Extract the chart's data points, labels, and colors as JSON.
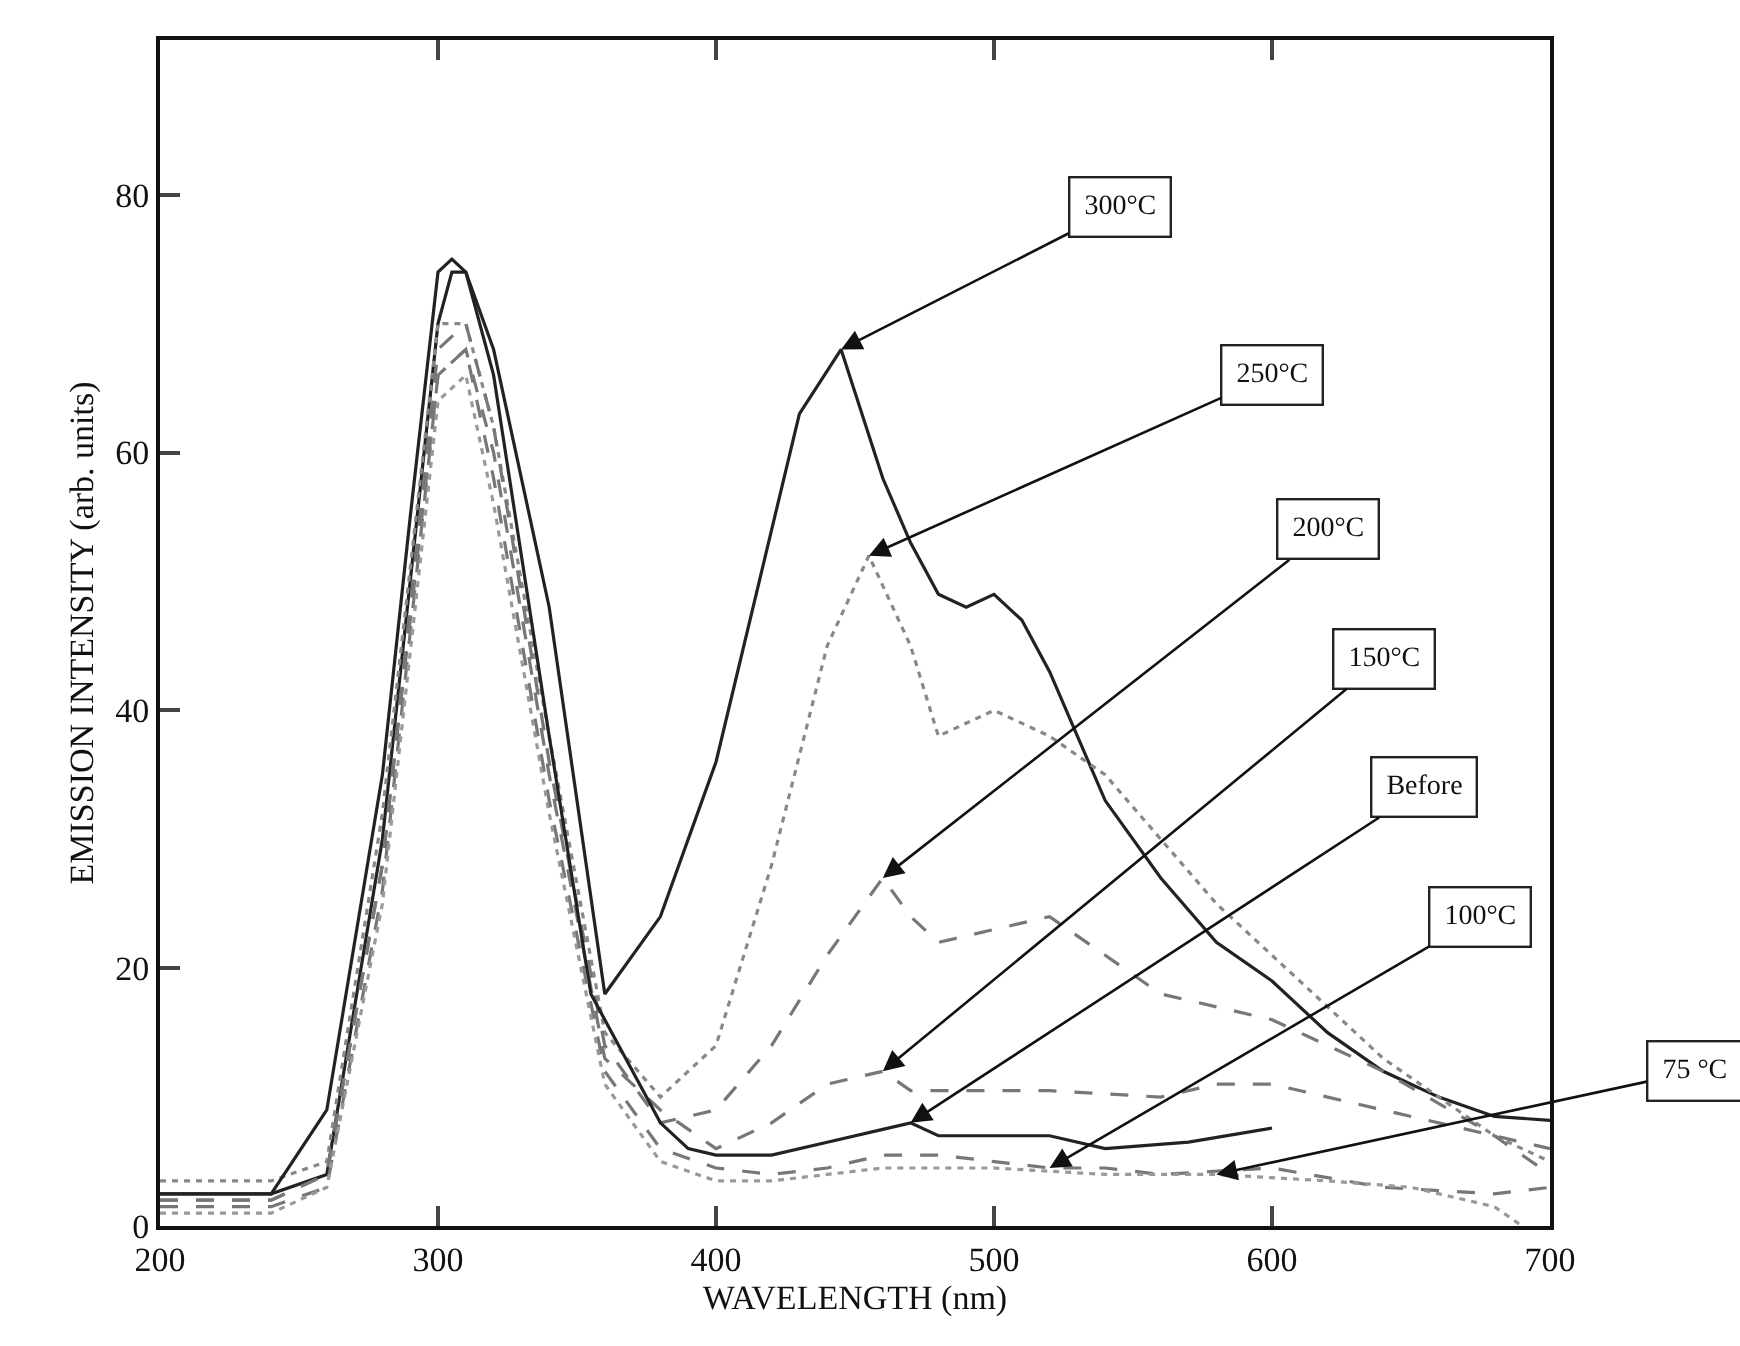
{
  "chart_data": {
    "type": "line",
    "xlabel": "WAVELENGTH (nm)",
    "ylabel": "EMISSION INTENSITY (arb. units)",
    "xlim": [
      200,
      700
    ],
    "xticks": [
      200,
      300,
      400,
      500,
      600,
      700
    ],
    "ylim": [
      0,
      92
    ],
    "yticks": [
      0,
      20,
      40,
      60,
      80
    ],
    "series": [
      {
        "color": "#222222",
        "line_style": "solid",
        "x": [
          200,
          240,
          260,
          280,
          300,
          305,
          310,
          320,
          340,
          360,
          380,
          400,
          420,
          430,
          445,
          460,
          470,
          480,
          490,
          500,
          510,
          520,
          540,
          560,
          580,
          600,
          620,
          640,
          660,
          680,
          700
        ],
        "values": [
          2.5,
          2.5,
          4,
          30,
          70,
          74,
          74,
          68,
          48,
          18,
          24,
          36,
          54,
          63,
          68,
          58,
          53,
          49,
          48,
          49,
          47,
          43,
          33,
          27,
          22,
          19,
          15,
          12,
          10,
          8.5,
          8.2
        ]
      },
      {
        "color": "#888888",
        "line_style": "dotted",
        "x": [
          200,
          240,
          260,
          280,
          300,
          310,
          320,
          340,
          360,
          380,
          400,
          420,
          440,
          455,
          470,
          480,
          500,
          520,
          540,
          560,
          580,
          600,
          640,
          680,
          700
        ],
        "values": [
          3.5,
          3.5,
          5,
          32,
          70,
          70,
          62,
          38,
          15,
          10,
          14,
          28,
          45,
          52,
          45,
          38,
          40,
          38,
          35,
          30,
          25,
          21,
          13,
          7,
          5
        ]
      },
      {
        "color": "#777777",
        "line_style": "dashed",
        "x": [
          200,
          240,
          260,
          280,
          300,
          310,
          320,
          340,
          360,
          380,
          400,
          420,
          440,
          460,
          470,
          480,
          500,
          520,
          540,
          560,
          580,
          600,
          640,
          680,
          700
        ],
        "values": [
          2,
          2,
          4,
          28,
          68,
          70,
          62,
          36,
          14,
          8,
          9,
          14,
          21,
          27,
          24,
          22,
          23,
          24,
          21,
          18,
          17,
          16,
          12,
          7,
          4
        ]
      },
      {
        "color": "#777777",
        "line_style": "dashed",
        "x": [
          200,
          240,
          260,
          280,
          300,
          310,
          320,
          340,
          360,
          380,
          400,
          420,
          440,
          460,
          470,
          480,
          500,
          520,
          560,
          580,
          600,
          640,
          680,
          700
        ],
        "values": [
          2,
          2,
          4,
          28,
          66,
          68,
          60,
          35,
          13,
          9,
          6,
          8,
          11,
          12,
          10.5,
          10.5,
          10.5,
          10.5,
          10,
          11,
          11,
          9,
          7,
          6
        ]
      },
      {
        "color": "#222222",
        "line_style": "solid",
        "x": [
          200,
          240,
          260,
          280,
          290,
          300,
          305,
          310,
          320,
          340,
          355,
          370,
          380,
          390,
          400,
          420,
          440,
          460,
          470,
          480,
          500,
          520,
          540,
          570,
          600
        ],
        "values": [
          2.5,
          2.5,
          9,
          35,
          55,
          74,
          75,
          74,
          66,
          38,
          18,
          12,
          8,
          6,
          5.5,
          5.5,
          6.5,
          7.5,
          8,
          7,
          7,
          7,
          6,
          6.5,
          7.6
        ]
      },
      {
        "color": "#777777",
        "line_style": "dashed",
        "x": [
          200,
          240,
          260,
          280,
          300,
          310,
          320,
          340,
          360,
          380,
          400,
          420,
          440,
          460,
          480,
          500,
          520,
          540,
          560,
          600,
          640,
          680,
          700
        ],
        "values": [
          1.5,
          1.5,
          3,
          26,
          66,
          68,
          58,
          33,
          12,
          6,
          4.5,
          4,
          4.5,
          5.5,
          5.5,
          5,
          4.5,
          4.5,
          4,
          4.5,
          3,
          2.5,
          3
        ]
      },
      {
        "color": "#999999",
        "line_style": "dotted",
        "x": [
          200,
          240,
          260,
          280,
          300,
          310,
          320,
          340,
          360,
          380,
          400,
          420,
          440,
          460,
          500,
          540,
          580,
          620,
          650,
          680,
          690
        ],
        "values": [
          1,
          1,
          3,
          25,
          64,
          66,
          56,
          32,
          11,
          5,
          3.5,
          3.5,
          4,
          4.5,
          4.5,
          4,
          4,
          3.5,
          3,
          1.5,
          0
        ]
      }
    ],
    "annotations": [
      {
        "text": "300°C",
        "x": 445,
        "y": 68
      },
      {
        "text": "250°C",
        "x": 455,
        "y": 52
      },
      {
        "text": "200°C",
        "x": 460,
        "y": 27
      },
      {
        "text": "150°C",
        "x": 460,
        "y": 12
      },
      {
        "text": "Before",
        "x": 470,
        "y": 8
      },
      {
        "text": "100°C",
        "x": 520,
        "y": 4.5
      },
      {
        "text": "75 °C",
        "x": 580,
        "y": 4
      }
    ]
  }
}
